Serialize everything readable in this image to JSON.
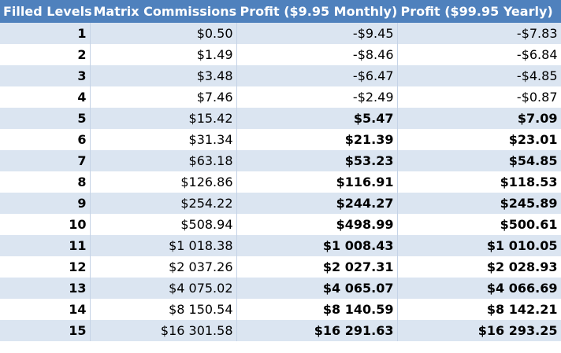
{
  "table": {
    "headers": [
      "Filled Levels",
      "Matrix Commissions",
      "Profit ($9.95 Monthly)",
      "Profit ($99.95 Yearly)"
    ],
    "rows": [
      {
        "level": "1",
        "commission": "$0.50",
        "monthly": "-$9.45",
        "yearly": "-$7.83",
        "bold_profit": false
      },
      {
        "level": "2",
        "commission": "$1.49",
        "monthly": "-$8.46",
        "yearly": "-$6.84",
        "bold_profit": false
      },
      {
        "level": "3",
        "commission": "$3.48",
        "monthly": "-$6.47",
        "yearly": "-$4.85",
        "bold_profit": false
      },
      {
        "level": "4",
        "commission": "$7.46",
        "monthly": "-$2.49",
        "yearly": "-$0.87",
        "bold_profit": false
      },
      {
        "level": "5",
        "commission": "$15.42",
        "monthly": "$5.47",
        "yearly": "$7.09",
        "bold_profit": true
      },
      {
        "level": "6",
        "commission": "$31.34",
        "monthly": "$21.39",
        "yearly": "$23.01",
        "bold_profit": true
      },
      {
        "level": "7",
        "commission": "$63.18",
        "monthly": "$53.23",
        "yearly": "$54.85",
        "bold_profit": true
      },
      {
        "level": "8",
        "commission": "$126.86",
        "monthly": "$116.91",
        "yearly": "$118.53",
        "bold_profit": true
      },
      {
        "level": "9",
        "commission": "$254.22",
        "monthly": "$244.27",
        "yearly": "$245.89",
        "bold_profit": true
      },
      {
        "level": "10",
        "commission": "$508.94",
        "monthly": "$498.99",
        "yearly": "$500.61",
        "bold_profit": true
      },
      {
        "level": "11",
        "commission": "$1 018.38",
        "monthly": "$1 008.43",
        "yearly": "$1 010.05",
        "bold_profit": true
      },
      {
        "level": "12",
        "commission": "$2 037.26",
        "monthly": "$2 027.31",
        "yearly": "$2 028.93",
        "bold_profit": true
      },
      {
        "level": "13",
        "commission": "$4 075.02",
        "monthly": "$4 065.07",
        "yearly": "$4 066.69",
        "bold_profit": true
      },
      {
        "level": "14",
        "commission": "$8 150.54",
        "monthly": "$8 140.59",
        "yearly": "$8 142.21",
        "bold_profit": true
      },
      {
        "level": "15",
        "commission": "$16 301.58",
        "monthly": "$16 291.63",
        "yearly": "$16 293.25",
        "bold_profit": true
      }
    ]
  },
  "colors": {
    "header_bg": "#4f81bd",
    "header_text": "#ffffff",
    "band_row_bg": "#dbe5f1",
    "plain_row_bg": "#ffffff"
  }
}
